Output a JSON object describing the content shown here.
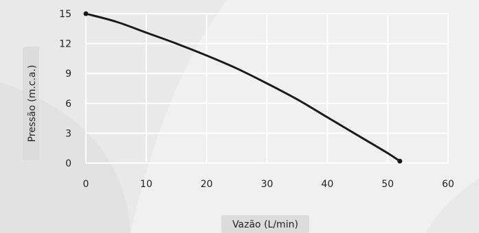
{
  "chart_data": {
    "type": "line",
    "xlabel": "Vazão (L/min)",
    "ylabel": "Pressão (m.c.a.)",
    "xlim": [
      0,
      60
    ],
    "ylim": [
      0,
      15
    ],
    "xticks": [
      "0",
      "10",
      "20",
      "30",
      "40",
      "50",
      "60"
    ],
    "yticks": [
      "0",
      "3",
      "6",
      "9",
      "12",
      "15"
    ],
    "grid": true,
    "legend": "none",
    "series": [
      {
        "x": [
          0,
          5,
          10,
          15,
          20,
          25,
          30,
          35,
          40,
          45,
          50,
          52
        ],
        "y": [
          15,
          14.2,
          13.1,
          12.0,
          10.8,
          9.5,
          8.0,
          6.4,
          4.6,
          2.8,
          1.0,
          0.2
        ],
        "color": "#1a1a1a"
      }
    ]
  },
  "colors": {
    "background": "#e9e9e9",
    "decor_light": "#f2f2f2",
    "grid": "#ffffff",
    "axis_label_box": "#dcdcdc",
    "line": "#1a1a1a"
  }
}
